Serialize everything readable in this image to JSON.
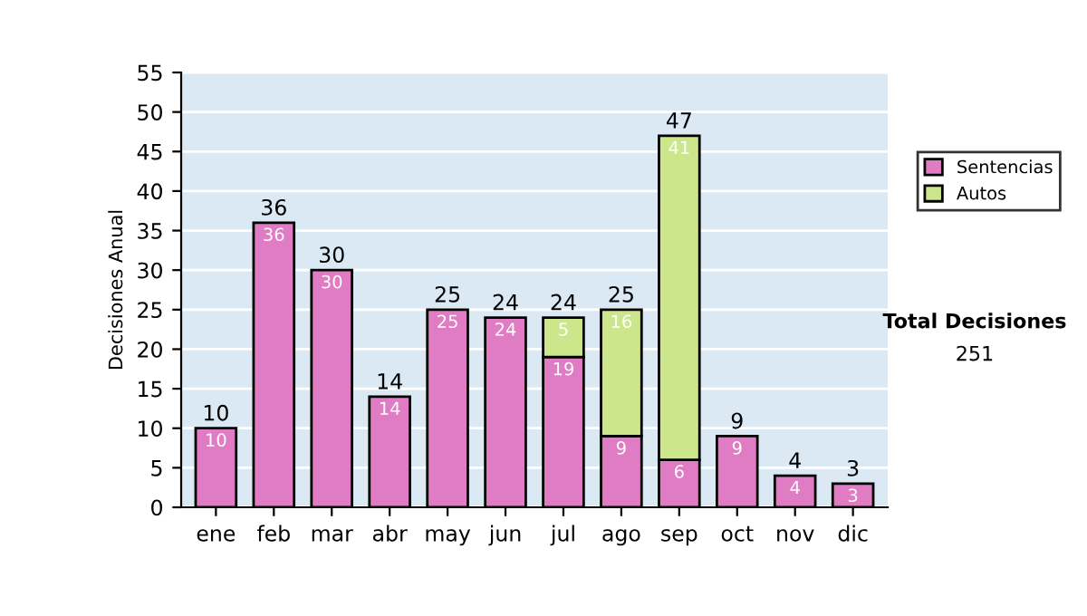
{
  "chart_data": {
    "type": "bar",
    "stacked": true,
    "ylabel": "Decisiones Anual",
    "categories": [
      "ene",
      "feb",
      "mar",
      "abr",
      "may",
      "jun",
      "jul",
      "ago",
      "sep",
      "oct",
      "nov",
      "dic"
    ],
    "series": [
      {
        "name": "Sentencias",
        "color": "#e07cc4",
        "values": [
          10,
          36,
          30,
          14,
          25,
          24,
          19,
          9,
          6,
          9,
          4,
          3
        ]
      },
      {
        "name": "Autos",
        "color": "#cce68c",
        "values": [
          null,
          null,
          null,
          null,
          null,
          null,
          5,
          16,
          41,
          null,
          null,
          null
        ]
      }
    ],
    "totals": [
      "10",
      "36",
      "30",
      "14",
      "25",
      "24",
      "24",
      "25",
      "47",
      "9",
      "4",
      "3"
    ],
    "data_labels": true,
    "ylim": [
      0,
      55
    ],
    "yticks": [
      0,
      5,
      10,
      15,
      20,
      25,
      30,
      35,
      40,
      45,
      50,
      55
    ],
    "grid": "y",
    "legend": "right",
    "annotations": [
      "Total Decisiones",
      "251"
    ]
  }
}
